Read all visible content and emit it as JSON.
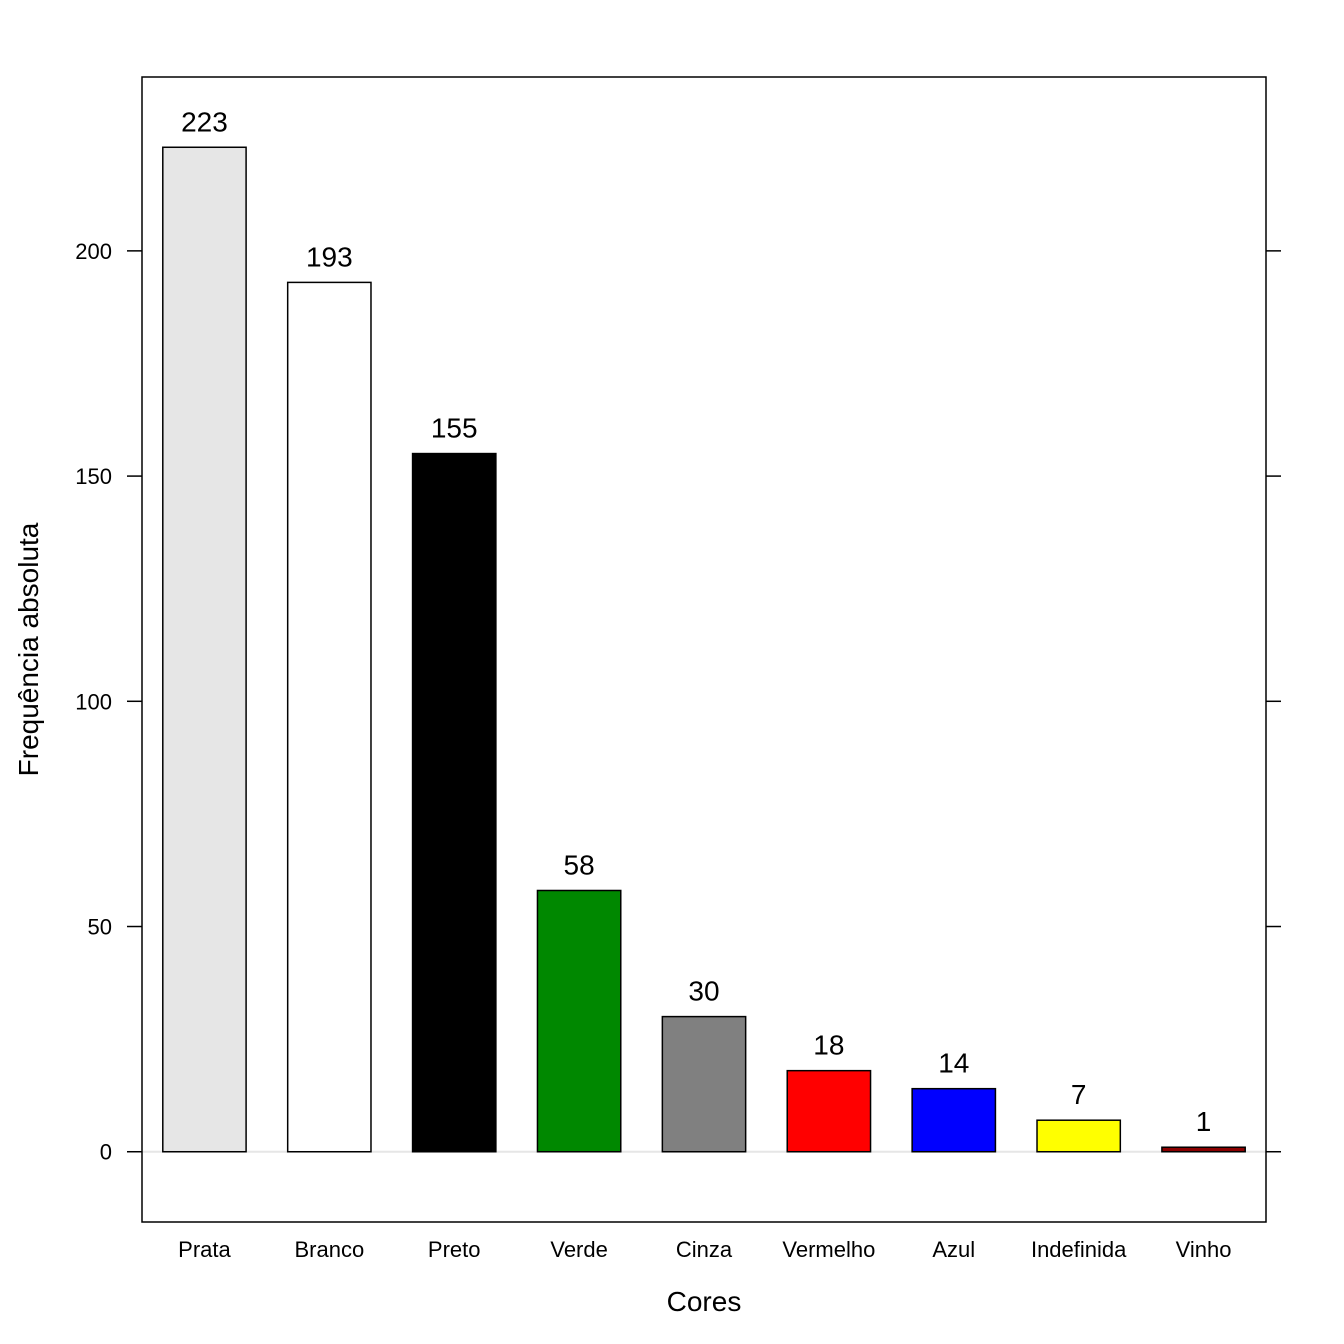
{
  "chart_data": {
    "type": "bar",
    "title": "",
    "xlabel": "Cores",
    "ylabel": "Frequência absoluta",
    "categories": [
      "Prata",
      "Branco",
      "Preto",
      "Verde",
      "Cinza",
      "Vermelho",
      "Azul",
      "Indefinida",
      "Vinho"
    ],
    "values": [
      223,
      193,
      155,
      58,
      30,
      18,
      14,
      7,
      1
    ],
    "value_labels": [
      "223",
      "193",
      "155",
      "58",
      "30",
      "18",
      "14",
      "7",
      "1"
    ],
    "bar_colors": [
      "#e6e6e6",
      "#ffffff",
      "#000000",
      "#008800",
      "#808080",
      "#ff0000",
      "#0000ff",
      "#ffff00",
      "#8b0000"
    ],
    "ylim": [
      -15.6,
      238.6
    ],
    "yticks": [
      0,
      50,
      100,
      150,
      200
    ],
    "ytick_labels": [
      "0",
      "50",
      "100",
      "150",
      "200"
    ],
    "baseline_color": "#e6e6e6",
    "grid": false,
    "legend": "none"
  }
}
